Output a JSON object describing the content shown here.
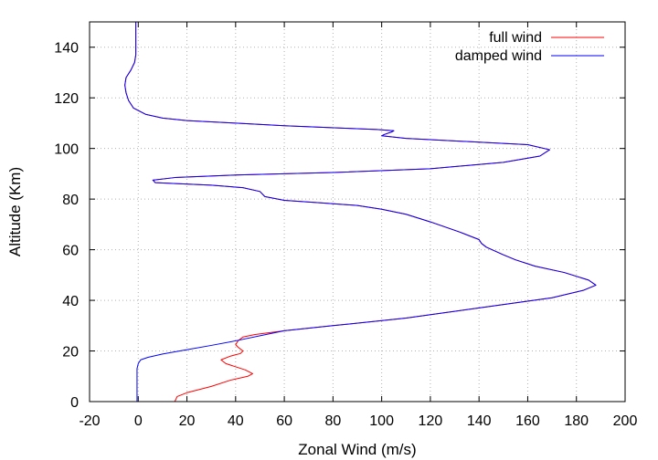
{
  "chart_data": {
    "type": "line",
    "xlabel": "Zonal Wind (m/s)",
    "ylabel": "Altitude (Km)",
    "xlim": [
      -20,
      200
    ],
    "ylim": [
      0,
      150
    ],
    "xticks": [
      -20,
      0,
      20,
      40,
      60,
      80,
      100,
      120,
      140,
      160,
      180,
      200
    ],
    "yticks": [
      0,
      20,
      40,
      60,
      80,
      100,
      120,
      140
    ],
    "grid": true,
    "legend_position": "top-right",
    "series": [
      {
        "name": "full wind",
        "color": "#ff0000",
        "points": [
          [
            15,
            0
          ],
          [
            16,
            2
          ],
          [
            20,
            3.5
          ],
          [
            30,
            6
          ],
          [
            38,
            8.5
          ],
          [
            45,
            10
          ],
          [
            47,
            11
          ],
          [
            44,
            12.5
          ],
          [
            36,
            15
          ],
          [
            34,
            16.5
          ],
          [
            38,
            18
          ],
          [
            42,
            19
          ],
          [
            43,
            20
          ],
          [
            41,
            21.5
          ],
          [
            40,
            22.5
          ],
          [
            41,
            24
          ],
          [
            43,
            25.5
          ],
          [
            48,
            26.5
          ],
          [
            60,
            28
          ],
          [
            80,
            30
          ],
          [
            110,
            33
          ],
          [
            140,
            37
          ],
          [
            170,
            41
          ],
          [
            183,
            44
          ],
          [
            188,
            46
          ],
          [
            185,
            48
          ],
          [
            175,
            51
          ],
          [
            163,
            53.5
          ],
          [
            155,
            56
          ],
          [
            150,
            58
          ],
          [
            143,
            61
          ],
          [
            141,
            62.5
          ],
          [
            140,
            64
          ],
          [
            132,
            67
          ],
          [
            120,
            71
          ],
          [
            110,
            74
          ],
          [
            100,
            76
          ],
          [
            90,
            77.5
          ],
          [
            75,
            78.5
          ],
          [
            60,
            79.5
          ],
          [
            52,
            81
          ],
          [
            50,
            83
          ],
          [
            43,
            84.5
          ],
          [
            30,
            85.5
          ],
          [
            7,
            86.5
          ],
          [
            6,
            87.5
          ],
          [
            15,
            88.5
          ],
          [
            40,
            89.5
          ],
          [
            80,
            90.5
          ],
          [
            120,
            92
          ],
          [
            150,
            94.5
          ],
          [
            165,
            97
          ],
          [
            169,
            99.5
          ],
          [
            160,
            101.5
          ],
          [
            140,
            102.5
          ],
          [
            110,
            104
          ],
          [
            100,
            105
          ],
          [
            101,
            105.5
          ],
          [
            104,
            106.5
          ],
          [
            105,
            107
          ],
          [
            98,
            107.5
          ],
          [
            85,
            108
          ],
          [
            60,
            109
          ],
          [
            40,
            110
          ],
          [
            20,
            111
          ],
          [
            10,
            112
          ],
          [
            3,
            113.5
          ],
          [
            -2,
            116
          ],
          [
            -4,
            119
          ],
          [
            -5,
            122
          ],
          [
            -5.5,
            125
          ],
          [
            -5,
            128
          ],
          [
            -3,
            131
          ],
          [
            -1.5,
            134
          ],
          [
            -1,
            137
          ],
          [
            -1,
            140
          ],
          [
            -1,
            145
          ],
          [
            -1,
            150
          ]
        ]
      },
      {
        "name": "damped wind",
        "color": "#0000ff",
        "points": [
          [
            -0.5,
            0
          ],
          [
            -0.5,
            5
          ],
          [
            -0.5,
            10
          ],
          [
            -0.5,
            13
          ],
          [
            0,
            15
          ],
          [
            1,
            16.5
          ],
          [
            4,
            17.5
          ],
          [
            10,
            18.8
          ],
          [
            20,
            20.5
          ],
          [
            30,
            22.2
          ],
          [
            40,
            24
          ],
          [
            50,
            26
          ],
          [
            60,
            28
          ],
          [
            80,
            30
          ],
          [
            110,
            33
          ],
          [
            140,
            37
          ],
          [
            170,
            41
          ],
          [
            183,
            44
          ],
          [
            188,
            46
          ],
          [
            185,
            48
          ],
          [
            175,
            51
          ],
          [
            163,
            53.5
          ],
          [
            155,
            56
          ],
          [
            150,
            58
          ],
          [
            143,
            61
          ],
          [
            141,
            62.5
          ],
          [
            140,
            64
          ],
          [
            132,
            67
          ],
          [
            120,
            71
          ],
          [
            110,
            74
          ],
          [
            100,
            76
          ],
          [
            90,
            77.5
          ],
          [
            75,
            78.5
          ],
          [
            60,
            79.5
          ],
          [
            52,
            81
          ],
          [
            50,
            83
          ],
          [
            43,
            84.5
          ],
          [
            30,
            85.5
          ],
          [
            7,
            86.5
          ],
          [
            6,
            87.5
          ],
          [
            15,
            88.5
          ],
          [
            40,
            89.5
          ],
          [
            80,
            90.5
          ],
          [
            120,
            92
          ],
          [
            150,
            94.5
          ],
          [
            165,
            97
          ],
          [
            169,
            99.5
          ],
          [
            160,
            101.5
          ],
          [
            140,
            102.5
          ],
          [
            110,
            104
          ],
          [
            100,
            105
          ],
          [
            101,
            105.5
          ],
          [
            104,
            106.5
          ],
          [
            105,
            107
          ],
          [
            98,
            107.5
          ],
          [
            85,
            108
          ],
          [
            60,
            109
          ],
          [
            40,
            110
          ],
          [
            20,
            111
          ],
          [
            10,
            112
          ],
          [
            3,
            113.5
          ],
          [
            -2,
            116
          ],
          [
            -4,
            119
          ],
          [
            -5,
            122
          ],
          [
            -5.5,
            125
          ],
          [
            -5,
            128
          ],
          [
            -3,
            131
          ],
          [
            -1.5,
            134
          ],
          [
            -1,
            137
          ],
          [
            -1,
            140
          ],
          [
            -1,
            145
          ],
          [
            -1,
            150
          ]
        ]
      }
    ]
  }
}
